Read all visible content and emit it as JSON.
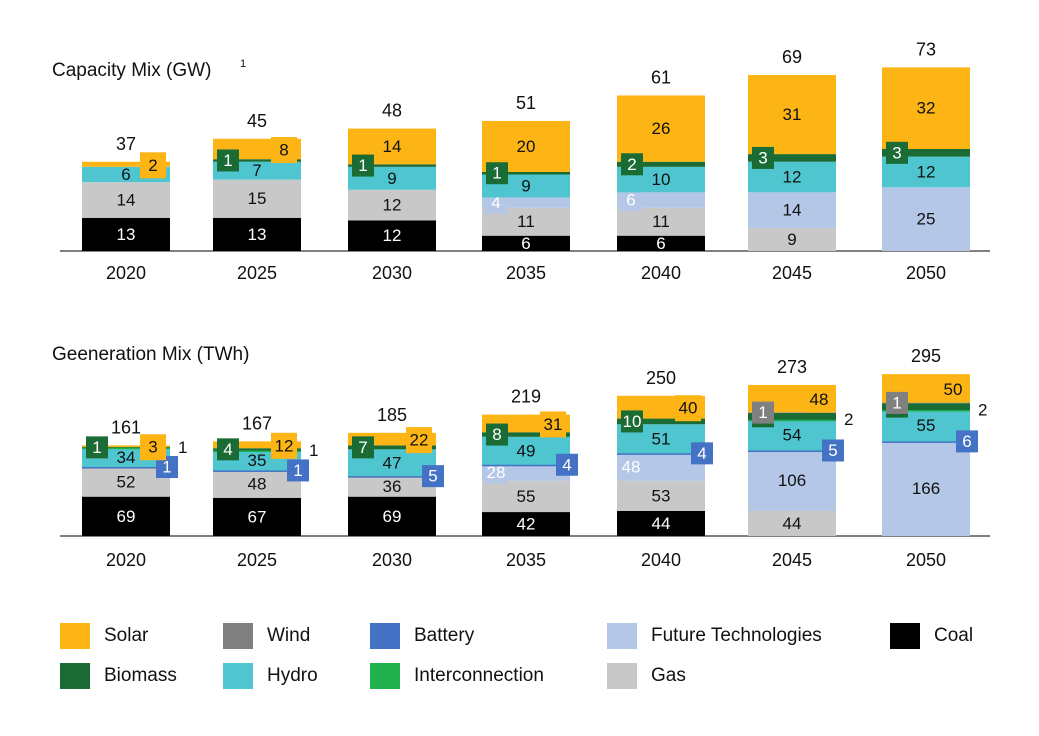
{
  "colors": {
    "Solar": "#FDB515",
    "Wind": "#808080",
    "Battery": "#4472C4",
    "Future Technologies": "#B4C7E7",
    "Coal": "#000000",
    "Biomass": "#1B6B35",
    "Hydro": "#4FC6CF",
    "Interconnection": "#21B04B",
    "Gas": "#C8C8C8"
  },
  "chart_data": [
    {
      "type": "bar",
      "title": "Capacity Mix (GW)",
      "footnote": "1",
      "categories": [
        "2020",
        "2025",
        "2030",
        "2035",
        "2040",
        "2045",
        "2050"
      ],
      "totals": [
        37,
        45,
        48,
        51,
        61,
        69,
        73
      ],
      "series": [
        {
          "name": "Coal",
          "values": [
            13,
            13,
            12,
            6,
            6,
            0,
            0
          ]
        },
        {
          "name": "Gas",
          "values": [
            14,
            15,
            12,
            11,
            11,
            9,
            0
          ]
        },
        {
          "name": "Future Technologies",
          "values": [
            0,
            0,
            0,
            4,
            6,
            14,
            25
          ]
        },
        {
          "name": "Battery",
          "values": [
            0,
            0,
            0,
            0,
            0,
            0,
            0
          ]
        },
        {
          "name": "Hydro",
          "values": [
            6,
            7,
            9,
            9,
            10,
            12,
            12
          ]
        },
        {
          "name": "Interconnection",
          "values": [
            0,
            0,
            0,
            0,
            0,
            0,
            0
          ]
        },
        {
          "name": "Biomass",
          "values": [
            0,
            1,
            1,
            1,
            2,
            3,
            3
          ]
        },
        {
          "name": "Wind",
          "values": [
            0,
            0,
            0,
            0,
            0,
            0,
            0
          ]
        },
        {
          "name": "Solar",
          "values": [
            2,
            8,
            14,
            20,
            26,
            31,
            32
          ]
        }
      ]
    },
    {
      "type": "bar",
      "title": "Geeneration Mix (TWh)",
      "categories": [
        "2020",
        "2025",
        "2030",
        "2035",
        "2040",
        "2045",
        "2050"
      ],
      "totals": [
        161,
        167,
        185,
        219,
        250,
        273,
        295
      ],
      "series": [
        {
          "name": "Coal",
          "values": [
            69,
            67,
            69,
            42,
            44,
            0,
            0
          ]
        },
        {
          "name": "Gas",
          "values": [
            52,
            48,
            36,
            55,
            53,
            44,
            0
          ]
        },
        {
          "name": "Future Technologies",
          "values": [
            0,
            0,
            0,
            28,
            48,
            106,
            166
          ]
        },
        {
          "name": "Battery",
          "values": [
            1,
            1,
            5,
            4,
            4,
            5,
            6
          ]
        },
        {
          "name": "Hydro",
          "values": [
            34,
            35,
            47,
            49,
            51,
            54,
            55
          ]
        },
        {
          "name": "Interconnection",
          "values": [
            1,
            1,
            0,
            0,
            0,
            2,
            2
          ]
        },
        {
          "name": "Biomass",
          "values": [
            1,
            4,
            7,
            8,
            10,
            12,
            12
          ]
        },
        {
          "name": "Wind",
          "values": [
            0,
            0,
            0,
            0,
            0,
            1,
            1
          ]
        },
        {
          "name": "Solar",
          "values": [
            3,
            12,
            22,
            31,
            40,
            48,
            50
          ]
        }
      ]
    }
  ],
  "legend": {
    "entries": [
      "Solar",
      "Wind",
      "Battery",
      "Future Technologies",
      "Coal",
      "Biomass",
      "Hydro",
      "Interconnection",
      "Gas"
    ]
  }
}
